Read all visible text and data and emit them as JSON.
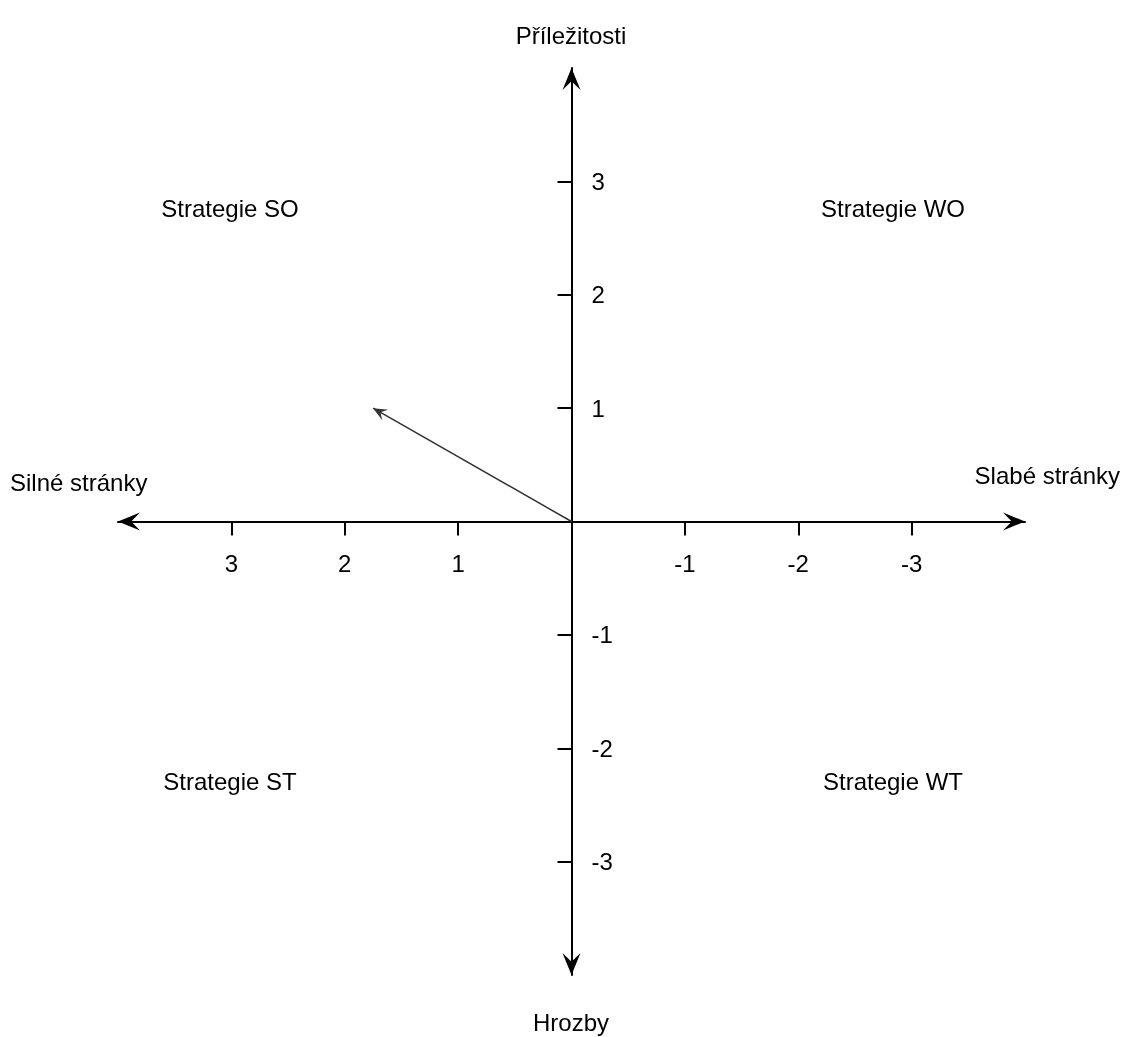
{
  "chart_data": {
    "type": "line",
    "x": [
      0,
      1.75
    ],
    "values": [
      0,
      1
    ],
    "color": "#333333",
    "xlim": [
      4,
      -4
    ],
    "ylim": [
      -4,
      4
    ],
    "xticks": [
      3,
      2,
      1,
      -1,
      -2,
      -3
    ],
    "yticks": [
      3,
      2,
      1,
      -1,
      -2,
      -3
    ],
    "grid": false,
    "annotations": [
      "Strategie SO",
      "Strategie WO",
      "Strategie ST",
      "Strategie WT",
      "Příležitosti",
      "Hrozby",
      "Silné stránky",
      "Slabé stránky"
    ]
  }
}
